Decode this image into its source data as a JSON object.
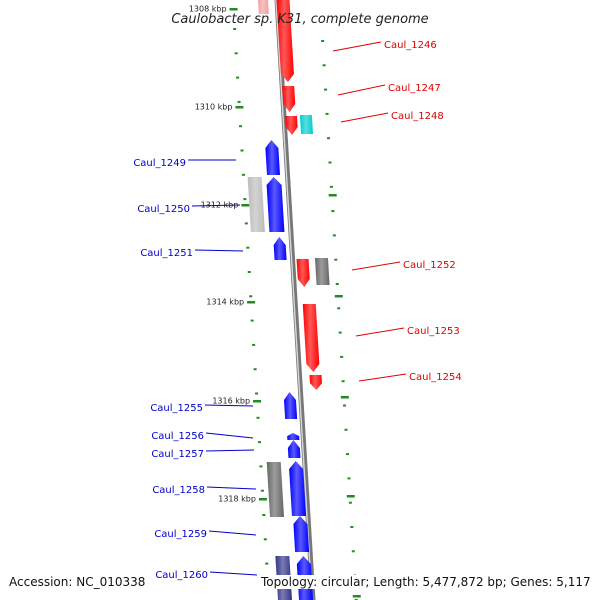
{
  "title": "Caulobacter sp. K31, complete genome",
  "footer": {
    "accession": "Accession: NC_010338",
    "summary": "Topology: circular; Length: 5,477,872 bp; Genes: 5,117"
  },
  "colors": {
    "forward_gene": "#ff0000",
    "reverse_gene": "#0000ff",
    "rna_gene": "#00cccc",
    "other_feature": "#666666",
    "faint_feature": "#bbbbbb",
    "dark_feature": "#333388",
    "backbone": "#888888",
    "tick": "#228b22"
  },
  "scale": {
    "labels": [
      {
        "text": "1308 kbp",
        "kbp": 1308
      },
      {
        "text": "1310 kbp",
        "kbp": 1310
      },
      {
        "text": "1312 kbp",
        "kbp": 1312
      },
      {
        "text": "1314 kbp",
        "kbp": 1314
      },
      {
        "text": "1316 kbp",
        "kbp": 1316
      },
      {
        "text": "1318 kbp",
        "kbp": 1318
      }
    ]
  },
  "genes": [
    {
      "name": "Caul_1246",
      "strand": "+",
      "color": "#ff0000"
    },
    {
      "name": "Caul_1247",
      "strand": "+",
      "color": "#ff0000"
    },
    {
      "name": "Caul_1248",
      "strand": "+",
      "color": "#ff0000"
    },
    {
      "name": "Caul_1249",
      "strand": "-",
      "color": "#0000ff"
    },
    {
      "name": "Caul_1250",
      "strand": "-",
      "color": "#0000ff"
    },
    {
      "name": "Caul_1251",
      "strand": "-",
      "color": "#0000ff"
    },
    {
      "name": "Caul_1252",
      "strand": "+",
      "color": "#ff0000"
    },
    {
      "name": "Caul_1253",
      "strand": "+",
      "color": "#ff0000"
    },
    {
      "name": "Caul_1254",
      "strand": "+",
      "color": "#ff0000"
    },
    {
      "name": "Caul_1255",
      "strand": "-",
      "color": "#0000ff"
    },
    {
      "name": "Caul_1256",
      "strand": "-",
      "color": "#0000ff"
    },
    {
      "name": "Caul_1257",
      "strand": "-",
      "color": "#0000ff"
    },
    {
      "name": "Caul_1258",
      "strand": "-",
      "color": "#0000ff"
    },
    {
      "name": "Caul_1259",
      "strand": "-",
      "color": "#0000ff"
    },
    {
      "name": "Caul_1260",
      "strand": "-",
      "color": "#0000ff"
    }
  ]
}
